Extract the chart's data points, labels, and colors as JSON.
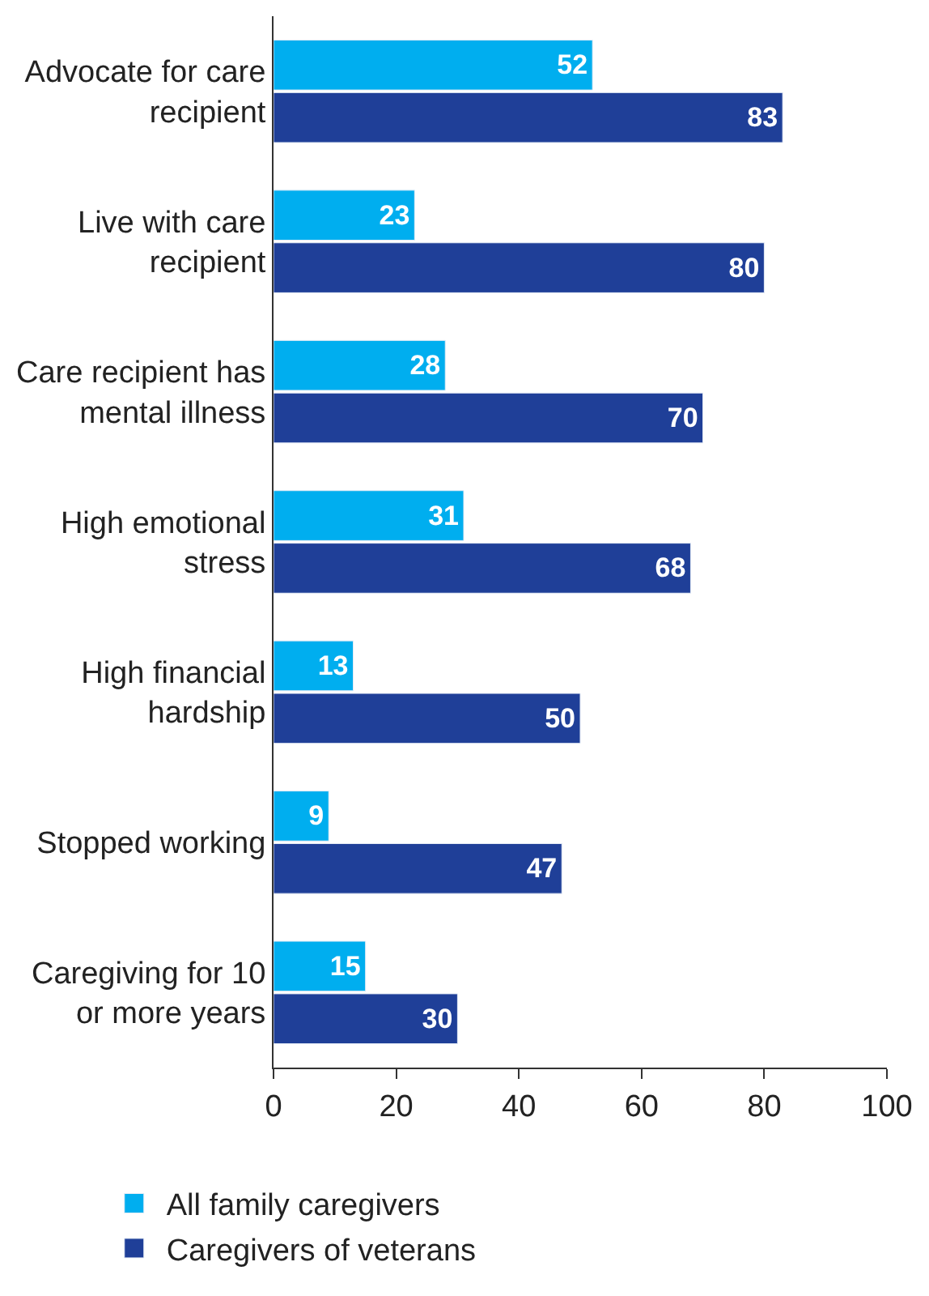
{
  "chart_data": {
    "type": "bar",
    "orientation": "horizontal",
    "categories": [
      "Advocate for care recipient",
      "Live with care recipient",
      "Care recipient has mental illness",
      "High emotional stress",
      "High financial hardship",
      "Stopped working",
      "Caregiving for 10 or more years"
    ],
    "series": [
      {
        "name": "All family caregivers",
        "color": "#00aeef",
        "values": [
          52,
          23,
          28,
          31,
          13,
          9,
          15
        ]
      },
      {
        "name": "Caregivers of veterans",
        "color": "#1f3f98",
        "values": [
          83,
          80,
          70,
          68,
          50,
          47,
          30
        ]
      }
    ],
    "xlim": [
      0,
      100
    ],
    "xticks": [
      0,
      20,
      40,
      60,
      80,
      100
    ],
    "data_labels": true,
    "legend": "bottom left"
  }
}
